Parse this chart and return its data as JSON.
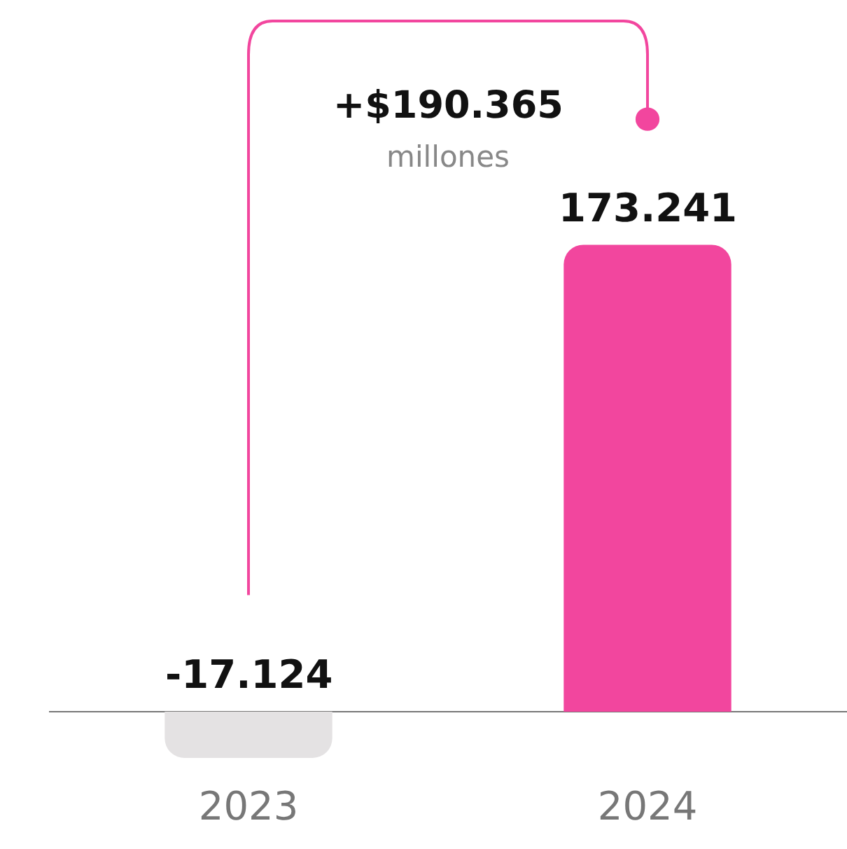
{
  "chart_data": {
    "type": "bar",
    "categories": [
      "2023",
      "2024"
    ],
    "values": [
      -17.124,
      173.241
    ],
    "colors": [
      "#e4e2e3",
      "#f2469e"
    ],
    "data_labels": true,
    "tick_labels": "x",
    "annotations": [
      "+$190.365",
      "millones"
    ]
  }
}
